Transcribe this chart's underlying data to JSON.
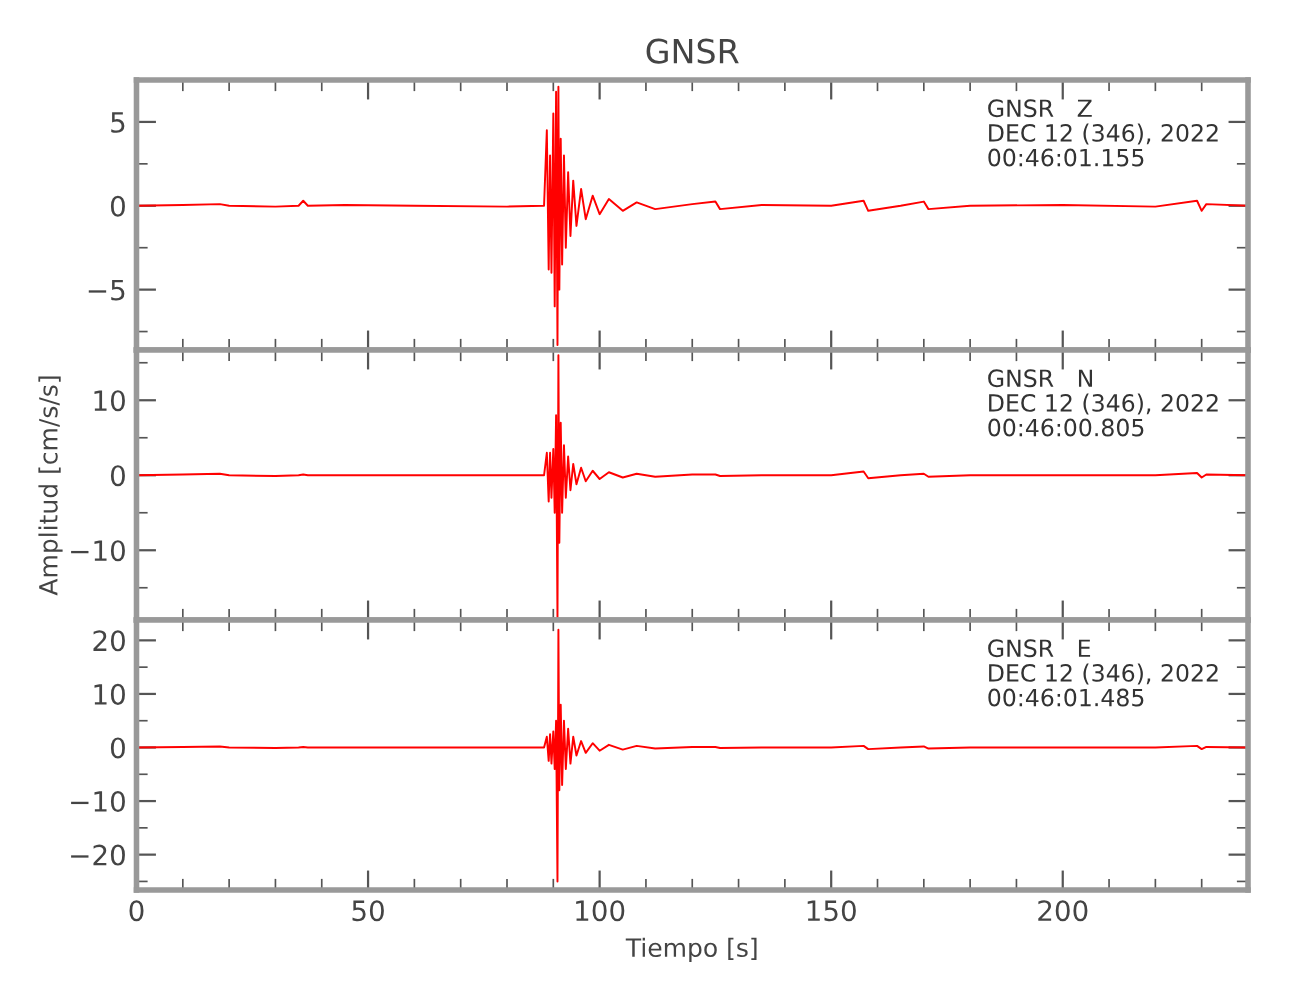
{
  "chart_data": [
    {
      "type": "line",
      "title": "GNSR",
      "x": [
        0,
        10,
        18,
        20,
        30,
        35,
        36,
        37,
        45,
        60,
        80,
        88,
        88.6,
        89,
        89.3,
        89.6,
        90,
        90.3,
        90.6,
        90.9,
        91.1,
        91.3,
        91.6,
        91.9,
        92.3,
        92.7,
        93.2,
        93.7,
        94.3,
        95,
        96,
        97,
        98.5,
        100,
        102,
        105,
        108,
        112,
        120,
        125,
        126,
        135,
        150,
        157,
        158,
        165,
        170,
        171,
        180,
        200,
        220,
        229,
        230,
        231,
        240
      ],
      "series": [
        {
          "color": "#ff0000",
          "values": [
            0,
            0.05,
            0.1,
            0,
            -0.05,
            0,
            0.3,
            0,
            0.05,
            0,
            -0.05,
            0,
            4.5,
            -3.8,
            3,
            -4,
            5.5,
            -6,
            6.8,
            -8.3,
            7.1,
            -5,
            4,
            -3.5,
            3,
            -2.5,
            2,
            -1.8,
            1.5,
            -1.2,
            1,
            -0.8,
            0.6,
            -0.5,
            0.4,
            -0.3,
            0.2,
            -0.2,
            0.1,
            0.25,
            -0.2,
            0.05,
            0,
            0.3,
            -0.3,
            0,
            0.25,
            -0.2,
            0,
            0.05,
            -0.05,
            0.3,
            -0.3,
            0.1,
            0
          ]
        }
      ],
      "annotations": [
        "GNSR   Z\nDEC 12 (346), 2022\n00:46:01.155"
      ],
      "xlim": [
        0,
        240
      ],
      "xticks": [
        0,
        50,
        100,
        150,
        200
      ],
      "ylim": [
        -8.6,
        7.5
      ],
      "yticks": [
        {
          "value": -5,
          "label": "−5"
        },
        0,
        5
      ],
      "tick_labels": "y",
      "grid": false,
      "legend": false
    },
    {
      "type": "line",
      "ylabel": "Amplitud [cm/s/s]",
      "x": [
        0,
        10,
        18,
        20,
        30,
        35,
        36,
        37,
        45,
        60,
        80,
        88,
        88.6,
        89,
        89.3,
        89.6,
        90,
        90.3,
        90.6,
        90.9,
        91.1,
        91.3,
        91.6,
        91.9,
        92.3,
        92.7,
        93.2,
        93.7,
        94.3,
        95,
        96,
        97,
        98.5,
        100,
        102,
        105,
        108,
        112,
        120,
        125,
        126,
        135,
        150,
        157,
        158,
        165,
        170,
        171,
        180,
        200,
        220,
        229,
        230,
        231,
        240
      ],
      "series": [
        {
          "color": "#ff0000",
          "values": [
            0,
            0.1,
            0.2,
            0,
            -0.1,
            0,
            0.1,
            0,
            0,
            0,
            0,
            0,
            3,
            -3.5,
            3,
            -3,
            3.5,
            -5,
            8,
            -19,
            16,
            -9,
            7,
            -5,
            4,
            -3,
            2.5,
            -2,
            1.5,
            -1.2,
            1,
            -0.8,
            0.6,
            -0.5,
            0.4,
            -0.3,
            0.2,
            -0.2,
            0.1,
            0.1,
            -0.1,
            0,
            0,
            0.5,
            -0.4,
            0,
            0.2,
            -0.2,
            0,
            0,
            0,
            0.3,
            -0.3,
            0.1,
            0
          ]
        }
      ],
      "annotations": [
        "GNSR   N\nDEC 12 (346), 2022\n00:46:00.805"
      ],
      "xlim": [
        0,
        240
      ],
      "xticks": [
        0,
        50,
        100,
        150,
        200
      ],
      "ylim": [
        -19.3,
        16.7
      ],
      "yticks": [
        {
          "value": -10,
          "label": "−10"
        },
        0,
        10
      ],
      "tick_labels": "y",
      "grid": false,
      "legend": false
    },
    {
      "type": "line",
      "xlabel": "Tiempo [s]",
      "x": [
        0,
        10,
        18,
        20,
        30,
        35,
        36,
        37,
        45,
        60,
        80,
        88,
        88.6,
        89,
        89.3,
        89.6,
        90,
        90.3,
        90.6,
        90.9,
        91.1,
        91.3,
        91.6,
        91.9,
        92.3,
        92.7,
        93.2,
        93.7,
        94.3,
        95,
        96,
        97,
        98.5,
        100,
        102,
        105,
        108,
        112,
        120,
        125,
        126,
        135,
        150,
        157,
        158,
        165,
        170,
        171,
        180,
        200,
        220,
        229,
        230,
        231,
        240
      ],
      "series": [
        {
          "color": "#ff0000",
          "values": [
            0,
            0.1,
            0.2,
            0,
            -0.1,
            0,
            0.1,
            0,
            0,
            0,
            0,
            0,
            2,
            -2.5,
            2.5,
            -3,
            3,
            -4,
            5,
            -25,
            22,
            -8,
            8,
            -7,
            5,
            -4,
            3.5,
            -3,
            2,
            -1.5,
            1.2,
            -1,
            0.8,
            -0.6,
            0.5,
            -0.4,
            0.3,
            -0.2,
            0.1,
            0.1,
            -0.1,
            0,
            0,
            0.3,
            -0.3,
            0,
            0.2,
            -0.2,
            0,
            0,
            0,
            0.3,
            -0.3,
            0.1,
            0
          ]
        }
      ],
      "annotations": [
        "GNSR   E\nDEC 12 (346), 2022\n00:46:01.485"
      ],
      "xlim": [
        0,
        240
      ],
      "xticks": [
        0,
        50,
        100,
        150,
        200
      ],
      "ylim": [
        -26.6,
        23.8
      ],
      "yticks": [
        {
          "value": -20,
          "label": "−20"
        },
        {
          "value": -10,
          "label": "−10"
        },
        0,
        10,
        20
      ],
      "grid": false,
      "legend": false
    }
  ]
}
